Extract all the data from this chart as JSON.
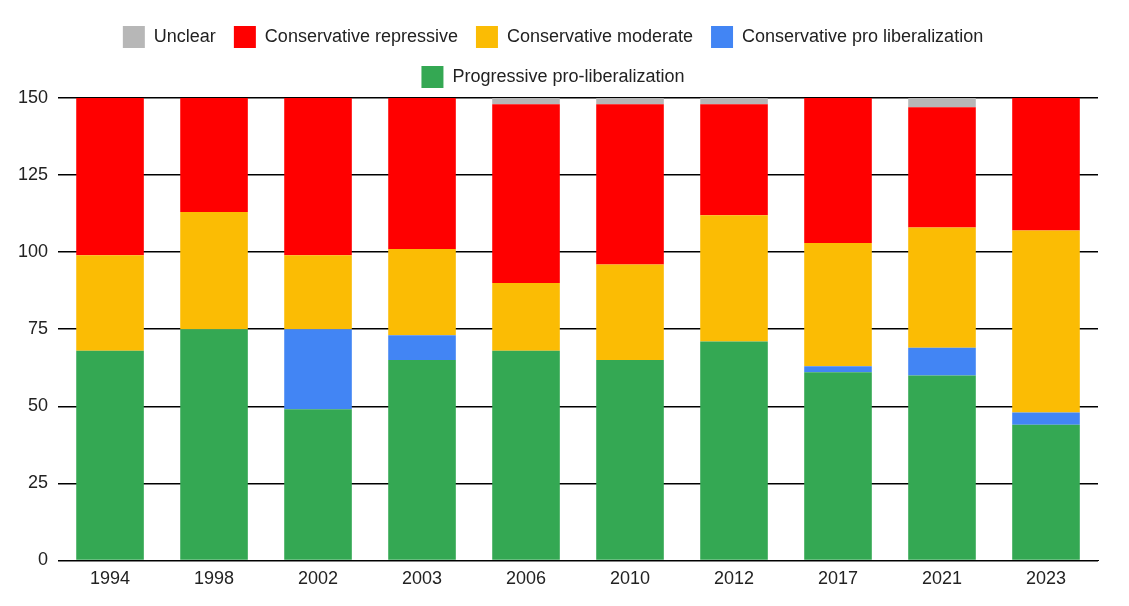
{
  "chart_data": {
    "type": "bar",
    "stacked": true,
    "categories": [
      "1994",
      "1998",
      "2002",
      "2003",
      "2006",
      "2010",
      "2012",
      "2017",
      "2021",
      "2023"
    ],
    "series": [
      {
        "name": "Progressive pro-liberalization",
        "color": "#34a853",
        "values": [
          68,
          75,
          49,
          65,
          68,
          65,
          71,
          61,
          60,
          44
        ]
      },
      {
        "name": "Conservative pro liberalization",
        "color": "#4285f4",
        "values": [
          0,
          0,
          26,
          8,
          0,
          0,
          0,
          2,
          9,
          4
        ]
      },
      {
        "name": "Conservative moderate",
        "color": "#fbbc04",
        "values": [
          31,
          38,
          24,
          28,
          22,
          31,
          41,
          40,
          39,
          59
        ]
      },
      {
        "name": "Conservative repressive",
        "color": "#ff0000",
        "values": [
          51,
          37,
          51,
          49,
          58,
          52,
          36,
          47,
          39,
          43
        ]
      },
      {
        "name": "Unclear",
        "color": "#b7b7b7",
        "values": [
          0,
          0,
          0,
          0,
          2,
          2,
          2,
          0,
          3,
          0
        ]
      }
    ],
    "ylim": [
      0,
      150
    ],
    "yticks": [
      0,
      25,
      50,
      75,
      100,
      125,
      150
    ],
    "grid": "y",
    "legend": "top"
  }
}
